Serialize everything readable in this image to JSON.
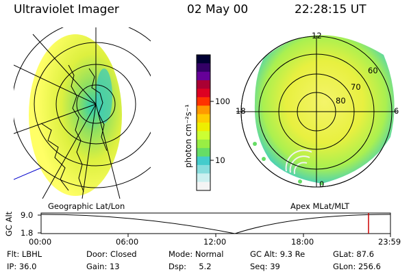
{
  "header": {
    "instrument": "Ultraviolet Imager",
    "date": "02 May 00",
    "time": "22:28:15 UT"
  },
  "colorbar": {
    "unit_label": "photon cm⁻²s⁻¹",
    "ticks": [
      "100",
      "10"
    ],
    "colors": [
      "#000033",
      "#330066",
      "#660099",
      "#aa0033",
      "#dd0022",
      "#ff3300",
      "#ff9900",
      "#ffcc00",
      "#eeee00",
      "#ccff33",
      "#99ee44",
      "#66dd66",
      "#44cccc",
      "#88dddd",
      "#ccf0f0",
      "#f4f4f4"
    ]
  },
  "left_panel": {
    "label": "Geographic Lat/Lon"
  },
  "right_panel": {
    "label": "Apex MLat/MLT",
    "mlt_labels": {
      "top": "12",
      "left": "18",
      "right": "6",
      "bottom": "0"
    },
    "lat_labels": [
      "60",
      "70",
      "80"
    ]
  },
  "altitude_plot": {
    "ylabel": "GC Alt",
    "y_ticks": [
      "9.0",
      "1.8"
    ],
    "x_ticks": [
      "00:00",
      "06:00",
      "12:00",
      "18:00",
      "23:59"
    ],
    "marker_color": "#cc0000"
  },
  "info": {
    "flt": "Flt: LBHL",
    "door": "Door: Closed",
    "mode": "Mode: Normal",
    "gcalt": "GC Alt: 9.3 Re",
    "glat": "GLat:  87.6",
    "ip": "IP: 36.0",
    "gain": "Gain: 13",
    "dsp": "Dsp:     5.2",
    "seq": "Seq: 39",
    "glon": "GLon: 256.6"
  }
}
